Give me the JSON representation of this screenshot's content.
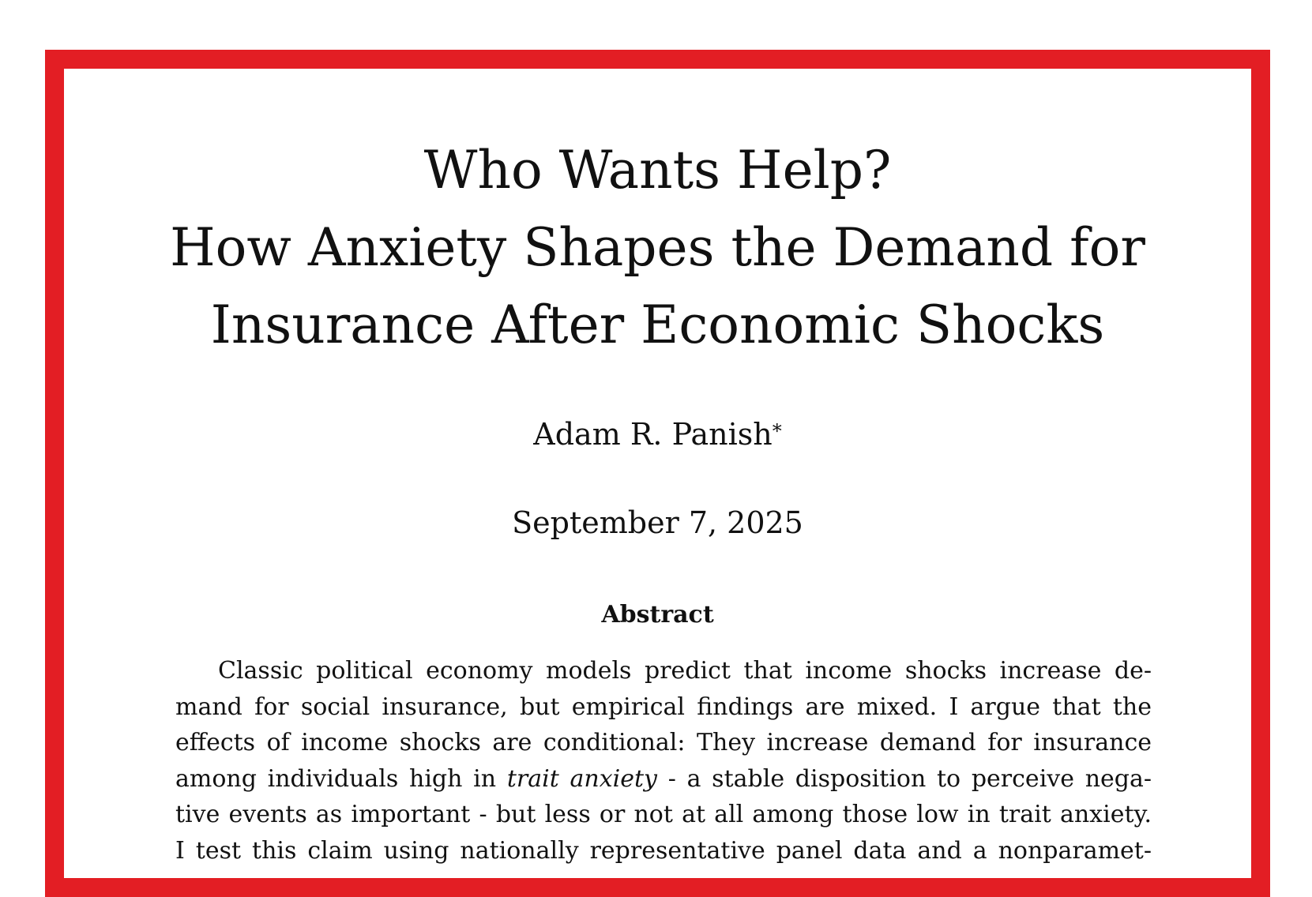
{
  "paper": {
    "title_lines": [
      "Who Wants Help?",
      "How Anxiety Shapes the Demand for",
      "Insurance After Economic Shocks"
    ],
    "author": "Adam R. Panish",
    "author_mark": "*",
    "date": "September 7, 2025",
    "abstract_heading": "Abstract",
    "abstract_lines": [
      "Classic political economy models predict that income shocks increase de-",
      "mand for social insurance, but empirical findings are mixed. I argue that the",
      "effects of income shocks are conditional: They increase demand for insurance",
      "among individuals high in",
      "trait anxiety",
      "- a stable disposition to perceive nega-",
      "tive events as important - but less or not at all among those low in trait anxiety.",
      "I test this claim using nationally representative panel data and a nonparamet-"
    ]
  },
  "colors": {
    "frame": "#e31e24",
    "text": "#111111",
    "background": "#ffffff"
  }
}
